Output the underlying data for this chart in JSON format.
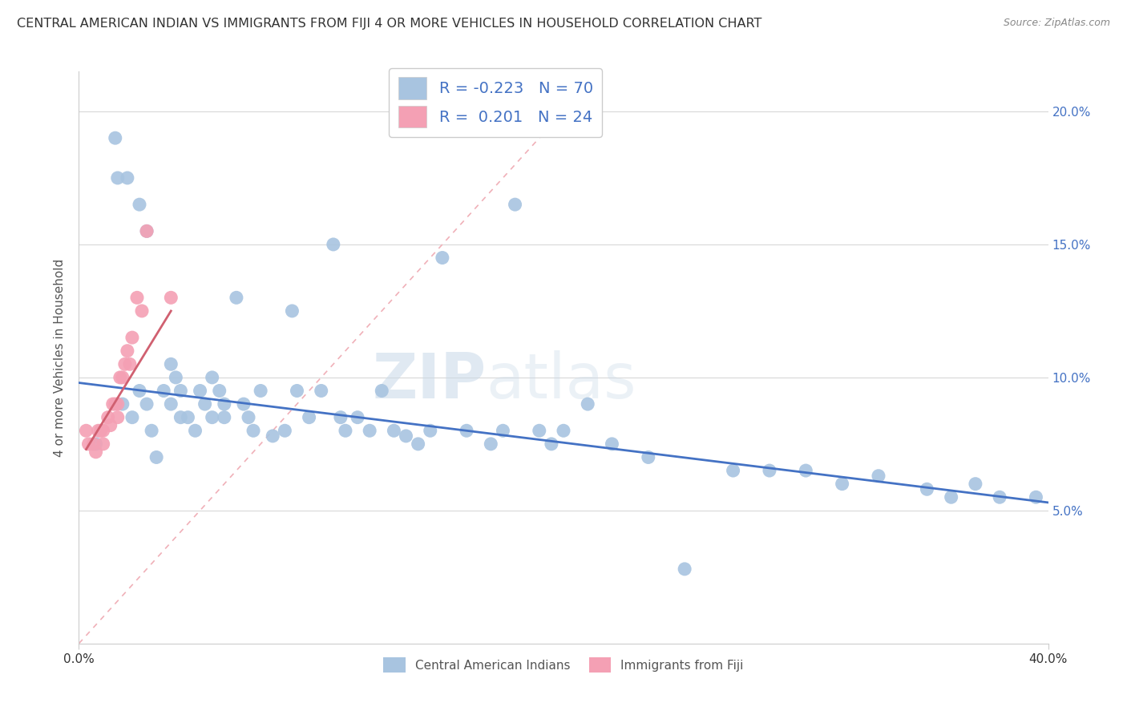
{
  "title": "CENTRAL AMERICAN INDIAN VS IMMIGRANTS FROM FIJI 4 OR MORE VEHICLES IN HOUSEHOLD CORRELATION CHART",
  "source": "Source: ZipAtlas.com",
  "ylabel": "4 or more Vehicles in Household",
  "y_ticks": [
    0.05,
    0.1,
    0.15,
    0.2
  ],
  "y_tick_labels": [
    "5.0%",
    "10.0%",
    "15.0%",
    "20.0%"
  ],
  "x_min": 0.0,
  "x_max": 0.4,
  "y_min": 0.0,
  "y_max": 0.215,
  "legend_cat1": "Central American Indians",
  "legend_cat2": "Immigrants from Fiji",
  "blue_color": "#a8c4e0",
  "pink_color": "#f4a0b4",
  "blue_line_color": "#4472c4",
  "pink_line_color": "#d06070",
  "grid_color": "#d8d8d8",
  "watermark_zip": "ZIP",
  "watermark_atlas": "atlas",
  "r1": -0.223,
  "n1": 70,
  "r2": 0.201,
  "n2": 24,
  "blue_scatter_x": [
    0.007,
    0.015,
    0.016,
    0.02,
    0.025,
    0.028,
    0.018,
    0.022,
    0.03,
    0.032,
    0.025,
    0.028,
    0.038,
    0.04,
    0.042,
    0.035,
    0.038,
    0.042,
    0.045,
    0.048,
    0.05,
    0.052,
    0.055,
    0.058,
    0.06,
    0.055,
    0.06,
    0.065,
    0.068,
    0.07,
    0.072,
    0.075,
    0.08,
    0.085,
    0.088,
    0.09,
    0.095,
    0.1,
    0.105,
    0.108,
    0.11,
    0.115,
    0.12,
    0.125,
    0.13,
    0.135,
    0.14,
    0.145,
    0.15,
    0.16,
    0.17,
    0.175,
    0.18,
    0.19,
    0.195,
    0.2,
    0.21,
    0.22,
    0.235,
    0.25,
    0.27,
    0.285,
    0.3,
    0.315,
    0.33,
    0.35,
    0.36,
    0.37,
    0.38,
    0.395
  ],
  "blue_scatter_y": [
    0.075,
    0.19,
    0.175,
    0.175,
    0.165,
    0.155,
    0.09,
    0.085,
    0.08,
    0.07,
    0.095,
    0.09,
    0.105,
    0.1,
    0.095,
    0.095,
    0.09,
    0.085,
    0.085,
    0.08,
    0.095,
    0.09,
    0.1,
    0.095,
    0.09,
    0.085,
    0.085,
    0.13,
    0.09,
    0.085,
    0.08,
    0.095,
    0.078,
    0.08,
    0.125,
    0.095,
    0.085,
    0.095,
    0.15,
    0.085,
    0.08,
    0.085,
    0.08,
    0.095,
    0.08,
    0.078,
    0.075,
    0.08,
    0.145,
    0.08,
    0.075,
    0.08,
    0.165,
    0.08,
    0.075,
    0.08,
    0.09,
    0.075,
    0.07,
    0.028,
    0.065,
    0.065,
    0.065,
    0.06,
    0.063,
    0.058,
    0.055,
    0.06,
    0.055,
    0.055
  ],
  "pink_scatter_x": [
    0.003,
    0.004,
    0.006,
    0.007,
    0.008,
    0.009,
    0.01,
    0.01,
    0.012,
    0.013,
    0.014,
    0.015,
    0.016,
    0.016,
    0.017,
    0.018,
    0.019,
    0.02,
    0.021,
    0.022,
    0.024,
    0.026,
    0.028,
    0.038
  ],
  "pink_scatter_y": [
    0.08,
    0.075,
    0.075,
    0.072,
    0.08,
    0.08,
    0.08,
    0.075,
    0.085,
    0.082,
    0.09,
    0.09,
    0.09,
    0.085,
    0.1,
    0.1,
    0.105,
    0.11,
    0.105,
    0.115,
    0.13,
    0.125,
    0.155,
    0.13
  ],
  "blue_line_x": [
    0.0,
    0.4
  ],
  "blue_line_y": [
    0.098,
    0.053
  ],
  "pink_line_x": [
    0.003,
    0.038
  ],
  "pink_line_y": [
    0.073,
    0.125
  ]
}
